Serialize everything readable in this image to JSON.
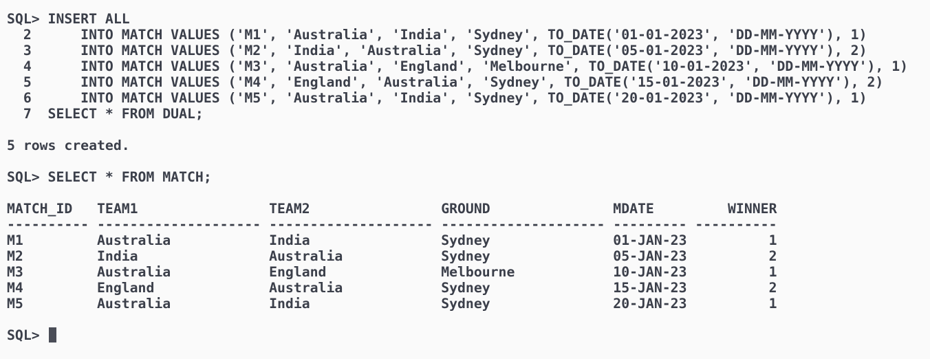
{
  "terminal": {
    "lines": [
      "SQL> INSERT ALL",
      "  2      INTO MATCH VALUES ('M1', 'Australia', 'India', 'Sydney', TO_DATE('01-01-2023', 'DD-MM-YYYY'), 1)",
      "  3      INTO MATCH VALUES ('M2', 'India', 'Australia', 'Sydney', TO_DATE('05-01-2023', 'DD-MM-YYYY'), 2)",
      "  4      INTO MATCH VALUES ('M3', 'Australia', 'England', 'Melbourne', TO_DATE('10-01-2023', 'DD-MM-YYYY'), 1)",
      "  5      INTO MATCH VALUES ('M4', 'England', 'Australia', 'Sydney', TO_DATE('15-01-2023', 'DD-MM-YYYY'), 2)",
      "  6      INTO MATCH VALUES ('M5', 'Australia', 'India', 'Sydney', TO_DATE('20-01-2023', 'DD-MM-YYYY'), 1)",
      "  7  SELECT * FROM DUAL;",
      "",
      "5 rows created.",
      "",
      "SQL> SELECT * FROM MATCH;",
      "",
      "MATCH_ID   TEAM1                TEAM2                GROUND               MDATE         WINNER",
      "---------- -------------------- -------------------- -------------------- --------- ----------",
      "M1         Australia            India                Sydney               01-JAN-23          1",
      "M2         India                Australia            Sydney               05-JAN-23          2",
      "M3         Australia            England              Melbourne            10-JAN-23          1",
      "M4         England              Australia            Sydney               15-JAN-23          2",
      "M5         Australia            India                Sydney               20-JAN-23          1",
      ""
    ],
    "prompt": "SQL> "
  }
}
